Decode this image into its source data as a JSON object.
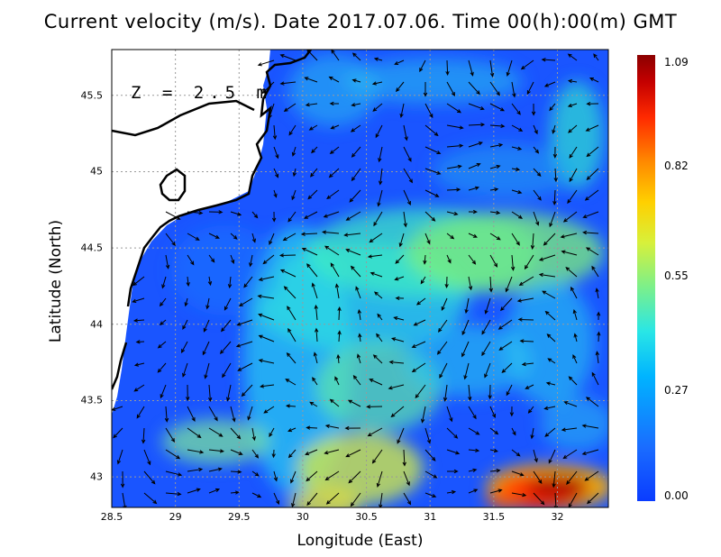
{
  "title": "Current velocity (m/s). Date 2017.07.06. Time 00(h):00(m) GMT",
  "depth_label": "Z = 2.5 m",
  "xlabel": "Longitude (East)",
  "ylabel": "Latitude (North)",
  "x_ticks": [
    "28.5",
    "29",
    "29.5",
    "30",
    "30.5",
    "31",
    "31.5",
    "32"
  ],
  "y_ticks": [
    "45.5",
    "45",
    "44.5",
    "44",
    "43.5",
    "43"
  ],
  "colorbar_ticks": [
    "1.09",
    "0.82",
    "0.55",
    "0.27",
    "0.00"
  ],
  "colors": {
    "sea_low": "#1a55ff",
    "land": "#ffffff",
    "coast": "#000000",
    "arrow": "#000000"
  },
  "chart_data": {
    "type": "heatmap",
    "variable": "current velocity",
    "units": "m/s",
    "xlim": [
      28.5,
      32.4
    ],
    "ylim": [
      42.8,
      45.8
    ],
    "colorbar_range": [
      0.0,
      1.09
    ],
    "grid": true,
    "high_speed_regions": [
      {
        "lon": 32.0,
        "lat": 42.95,
        "speed": 1.0
      },
      {
        "lon": 30.5,
        "lat": 43.6,
        "speed": 0.5
      },
      {
        "lon": 31.4,
        "lat": 44.4,
        "speed": 0.5
      },
      {
        "lon": 30.5,
        "lat": 43.0,
        "speed": 0.6
      }
    ]
  }
}
